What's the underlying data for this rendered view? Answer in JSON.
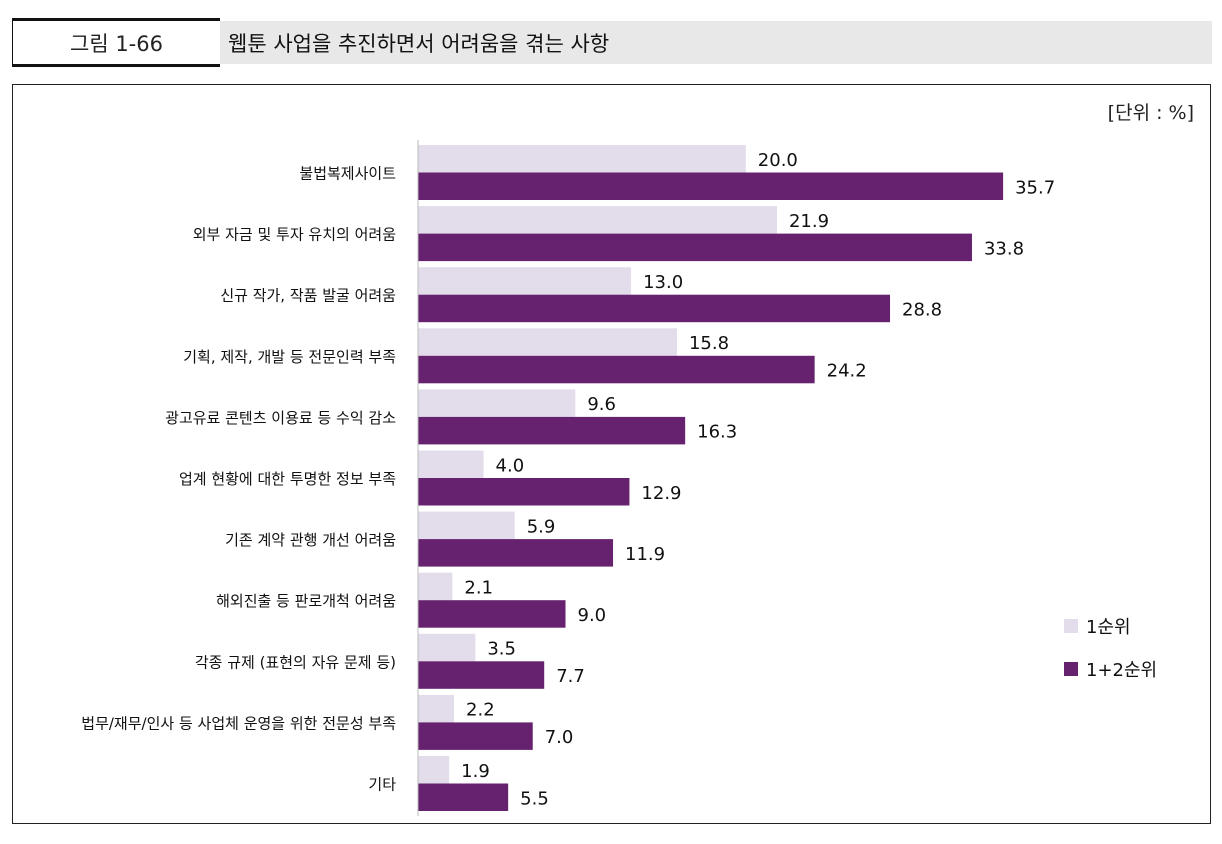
{
  "figure": {
    "label": "그림 1-66",
    "title": "웹툰 사업을 추진하면서 어려움을 겪는 사항",
    "unit": "[단위 : %]"
  },
  "colors": {
    "rank1": "#e3dcea",
    "rank12": "#66226f"
  },
  "chart_data": {
    "type": "bar",
    "orientation": "horizontal",
    "categories": [
      "불법복제사이트",
      "외부 자금 및 투자 유치의 어려움",
      "신규 작가, 작품 발굴 어려움",
      "기획, 제작, 개발 등 전문인력 부족",
      "광고유료 콘텐츠 이용료 등 수익 감소",
      "업계 현황에 대한 투명한 정보 부족",
      "기존 계약 관행 개선 어려움",
      "해외진출 등 판로개척 어려움",
      "각종 규제 (표현의 자유 문제 등)",
      "법무/재무/인사 등 사업체 운영을 위한 전문성 부족",
      "기타"
    ],
    "series": [
      {
        "name": "1순위",
        "values": [
          20.0,
          21.9,
          13.0,
          15.8,
          9.6,
          4.0,
          5.9,
          2.1,
          3.5,
          2.2,
          1.9
        ]
      },
      {
        "name": "1+2순위",
        "values": [
          35.7,
          33.8,
          28.8,
          24.2,
          16.3,
          12.9,
          11.9,
          9.0,
          7.7,
          7.0,
          5.5
        ]
      }
    ],
    "legend": "right",
    "grid": false,
    "xlim": [
      0,
      40
    ]
  }
}
